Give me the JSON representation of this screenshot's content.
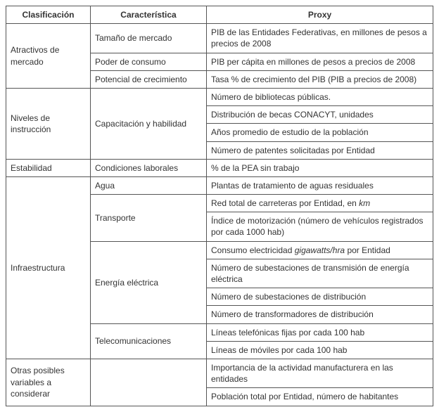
{
  "headers": {
    "c1": "Clasificación",
    "c2": "Característica",
    "c3": "Proxy"
  },
  "groups": [
    {
      "name": "Atractivos de mercado",
      "rows": [
        {
          "char": "Tamaño de mercado",
          "proxy": "PIB de las Entidades Federativas, en millones de pesos a precios de 2008"
        },
        {
          "char": "Poder de consumo",
          "proxy": "PIB per cápita en millones de pesos a precios de 2008"
        },
        {
          "char": "Potencial de crecimiento",
          "proxy": "Tasa % de crecimiento del PIB (PIB a precios de 2008)"
        }
      ]
    },
    {
      "name": "Niveles de instrucción",
      "rows": [
        {
          "char": "Capacitación y habilidad",
          "char_span": 4,
          "proxy": "Número de bibliotecas públicas."
        },
        {
          "proxy": "Distribución de becas CONACYT, unidades"
        },
        {
          "proxy": "Años promedio de estudio de la población"
        },
        {
          "proxy": "Número de patentes solicitadas por Entidad"
        }
      ]
    },
    {
      "name": "Estabilidad",
      "rows": [
        {
          "char": "Condiciones laborales",
          "proxy": "% de la PEA sin trabajo"
        }
      ]
    },
    {
      "name": "Infraestructura",
      "rows": [
        {
          "char": "Agua",
          "proxy": "Plantas de tratamiento de aguas residuales"
        },
        {
          "char": "Transporte",
          "char_span": 2,
          "proxy_html": "Red total de carreteras por Entidad, en <em>km</em>"
        },
        {
          "proxy": "Índice de motorización (número de vehículos registrados por cada 1000 hab)"
        },
        {
          "char": "Energía eléctrica",
          "char_span": 4,
          "proxy_html": "Consumo electricidad <em>gigawatts/hra</em> por Entidad"
        },
        {
          "proxy": "Número de subestaciones de transmisión de energía eléctrica"
        },
        {
          "proxy": "Número de subestaciones de distribución"
        },
        {
          "proxy": "Número de transformadores de distribución"
        },
        {
          "char": "Telecomunicaciones",
          "char_span": 2,
          "proxy": "Líneas telefónicas fijas por cada 100 hab"
        },
        {
          "proxy": "Líneas de móviles por cada 100 hab"
        }
      ]
    },
    {
      "name": "Otras posibles variables a considerar",
      "rows": [
        {
          "char": "",
          "char_span": 2,
          "proxy": "Importancia de la actividad manufacturera en las entidades"
        },
        {
          "proxy": "Población total por Entidad, número de habitantes"
        }
      ]
    }
  ]
}
